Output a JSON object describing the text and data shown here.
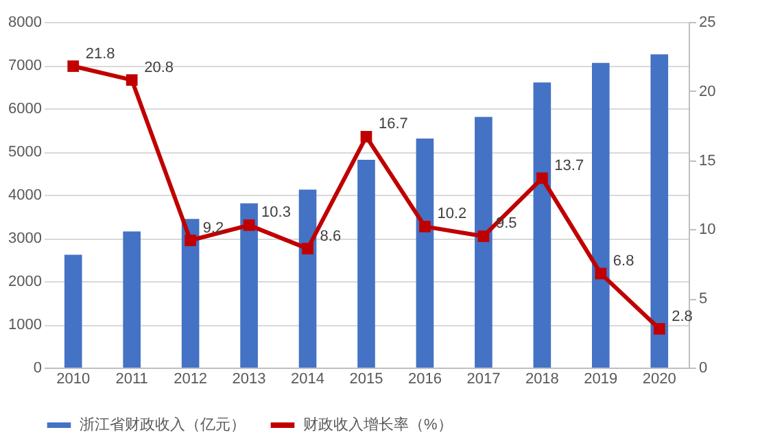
{
  "chart_data": {
    "type": "bar",
    "categories": [
      "2010",
      "2011",
      "2012",
      "2013",
      "2014",
      "2015",
      "2016",
      "2017",
      "2018",
      "2019",
      "2020"
    ],
    "series": [
      {
        "name": "浙江省财政收入（亿元）",
        "color": "#4472c4",
        "values": [
          2610,
          3150,
          3440,
          3800,
          4120,
          4810,
          5300,
          5800,
          6600,
          7050,
          7250
        ]
      },
      {
        "name": "财政收入增长率（%）",
        "type": "line",
        "axis": "y2",
        "color": "#c00000",
        "marker": "square",
        "data_labels": true,
        "values": [
          21.8,
          20.8,
          9.2,
          10.3,
          8.6,
          16.7,
          10.2,
          9.5,
          13.7,
          6.8,
          2.8
        ]
      }
    ],
    "ylim": [
      0,
      8000
    ],
    "yticks": [
      0,
      1000,
      2000,
      3000,
      4000,
      5000,
      6000,
      7000,
      8000
    ],
    "y2lim": [
      0,
      25
    ],
    "y2ticks": [
      0,
      5,
      10,
      15,
      20,
      25
    ],
    "grid": "y",
    "legend": "bottom"
  }
}
